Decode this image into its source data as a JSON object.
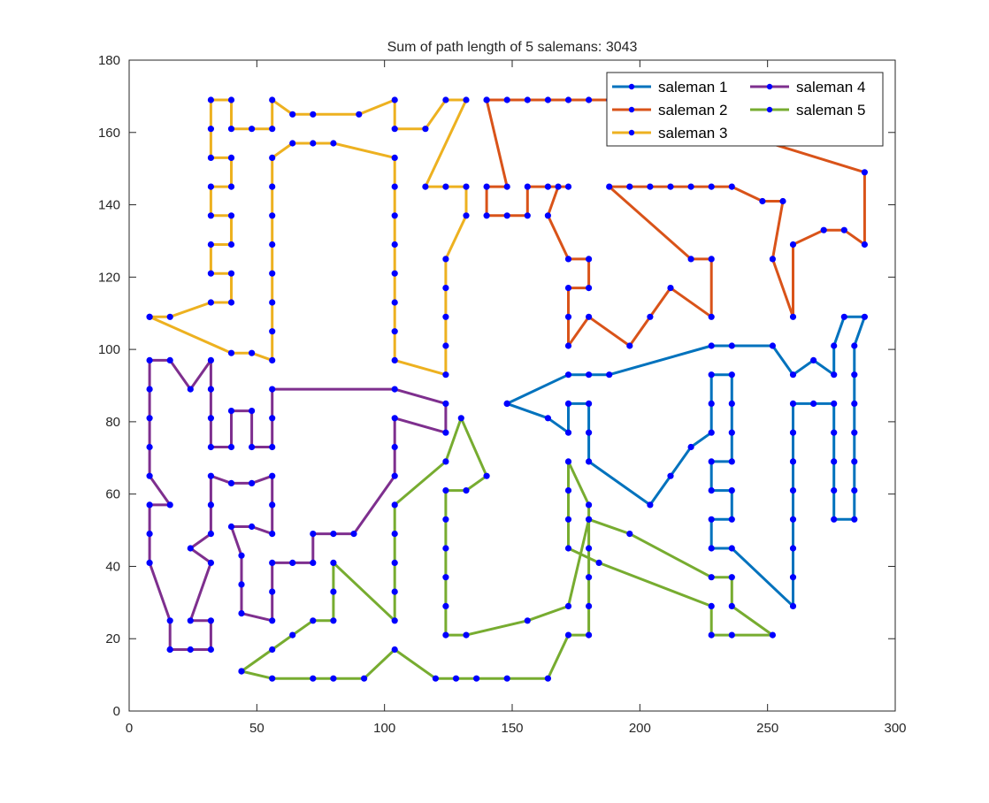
{
  "chart_data": {
    "type": "line",
    "title": "Sum of path length of 5 salemans: 3043",
    "xlabel": "",
    "ylabel": "",
    "xlim": [
      0,
      300
    ],
    "ylim": [
      0,
      180
    ],
    "xticks": [
      0,
      50,
      100,
      150,
      200,
      250,
      300
    ],
    "yticks": [
      0,
      20,
      40,
      60,
      80,
      100,
      120,
      140,
      160,
      180
    ],
    "grid": false,
    "legend_position": "top-right",
    "marker_color": "#0000ff",
    "series": [
      {
        "name": "saleman 1",
        "color": "#0072bd",
        "points": [
          [
            148,
            85
          ],
          [
            172,
            93
          ],
          [
            180,
            93
          ],
          [
            188,
            93
          ],
          [
            228,
            101
          ],
          [
            236,
            101
          ],
          [
            252,
            101
          ],
          [
            260,
            93
          ],
          [
            268,
            97
          ],
          [
            276,
            93
          ],
          [
            276,
            101
          ],
          [
            280,
            109
          ],
          [
            288,
            109
          ],
          [
            284,
            101
          ],
          [
            284,
            93
          ],
          [
            284,
            85
          ],
          [
            284,
            77
          ],
          [
            284,
            69
          ],
          [
            284,
            61
          ],
          [
            284,
            53
          ],
          [
            276,
            53
          ],
          [
            276,
            61
          ],
          [
            276,
            69
          ],
          [
            276,
            77
          ],
          [
            276,
            85
          ],
          [
            268,
            85
          ],
          [
            260,
            85
          ],
          [
            260,
            77
          ],
          [
            260,
            69
          ],
          [
            260,
            61
          ],
          [
            260,
            53
          ],
          [
            260,
            45
          ],
          [
            260,
            37
          ],
          [
            260,
            29
          ],
          [
            236,
            45
          ],
          [
            228,
            45
          ],
          [
            228,
            53
          ],
          [
            236,
            53
          ],
          [
            236,
            61
          ],
          [
            228,
            61
          ],
          [
            228,
            69
          ],
          [
            236,
            69
          ],
          [
            236,
            77
          ],
          [
            236,
            85
          ],
          [
            236,
            93
          ],
          [
            228,
            93
          ],
          [
            228,
            85
          ],
          [
            228,
            77
          ],
          [
            220,
            73
          ],
          [
            212,
            65
          ],
          [
            204,
            57
          ],
          [
            180,
            69
          ],
          [
            180,
            77
          ],
          [
            180,
            85
          ],
          [
            172,
            85
          ],
          [
            172,
            77
          ],
          [
            164,
            81
          ],
          [
            148,
            85
          ]
        ]
      },
      {
        "name": "saleman 2",
        "color": "#d95319",
        "points": [
          [
            140,
            169
          ],
          [
            148,
            169
          ],
          [
            156,
            169
          ],
          [
            164,
            169
          ],
          [
            172,
            169
          ],
          [
            180,
            169
          ],
          [
            188,
            169
          ],
          [
            196,
            169
          ],
          [
            288,
            149
          ],
          [
            288,
            129
          ],
          [
            280,
            133
          ],
          [
            272,
            133
          ],
          [
            260,
            129
          ],
          [
            260,
            109
          ],
          [
            252,
            125
          ],
          [
            256,
            141
          ],
          [
            248,
            141
          ],
          [
            236,
            145
          ],
          [
            228,
            145
          ],
          [
            220,
            145
          ],
          [
            212,
            145
          ],
          [
            204,
            145
          ],
          [
            196,
            145
          ],
          [
            188,
            145
          ],
          [
            220,
            125
          ],
          [
            228,
            125
          ],
          [
            228,
            109
          ],
          [
            212,
            117
          ],
          [
            204,
            109
          ],
          [
            196,
            101
          ],
          [
            180,
            109
          ],
          [
            172,
            101
          ],
          [
            172,
            109
          ],
          [
            172,
            117
          ],
          [
            180,
            117
          ],
          [
            180,
            125
          ],
          [
            172,
            125
          ],
          [
            164,
            137
          ],
          [
            168,
            145
          ],
          [
            172,
            145
          ],
          [
            164,
            145
          ],
          [
            156,
            145
          ],
          [
            156,
            137
          ],
          [
            148,
            137
          ],
          [
            140,
            137
          ],
          [
            140,
            145
          ],
          [
            148,
            145
          ],
          [
            140,
            169
          ]
        ]
      },
      {
        "name": "saleman 3",
        "color": "#edb120",
        "points": [
          [
            8,
            109
          ],
          [
            40,
            99
          ],
          [
            48,
            99
          ],
          [
            56,
            97
          ],
          [
            56,
            105
          ],
          [
            56,
            113
          ],
          [
            56,
            121
          ],
          [
            56,
            129
          ],
          [
            56,
            137
          ],
          [
            56,
            145
          ],
          [
            56,
            153
          ],
          [
            64,
            157
          ],
          [
            72,
            157
          ],
          [
            80,
            157
          ],
          [
            104,
            153
          ],
          [
            104,
            145
          ],
          [
            104,
            137
          ],
          [
            104,
            129
          ],
          [
            104,
            121
          ],
          [
            104,
            113
          ],
          [
            104,
            105
          ],
          [
            104,
            97
          ],
          [
            124,
            93
          ],
          [
            124,
            101
          ],
          [
            124,
            109
          ],
          [
            124,
            117
          ],
          [
            124,
            125
          ],
          [
            132,
            137
          ],
          [
            132,
            145
          ],
          [
            124,
            145
          ],
          [
            116,
            145
          ],
          [
            132,
            169
          ],
          [
            124,
            169
          ],
          [
            116,
            161
          ],
          [
            104,
            161
          ],
          [
            104,
            169
          ],
          [
            90,
            165
          ],
          [
            72,
            165
          ],
          [
            64,
            165
          ],
          [
            56,
            169
          ],
          [
            56,
            161
          ],
          [
            48,
            161
          ],
          [
            40,
            161
          ],
          [
            40,
            169
          ],
          [
            32,
            169
          ],
          [
            32,
            161
          ],
          [
            32,
            153
          ],
          [
            40,
            153
          ],
          [
            40,
            145
          ],
          [
            32,
            145
          ],
          [
            32,
            137
          ],
          [
            40,
            137
          ],
          [
            40,
            129
          ],
          [
            32,
            129
          ],
          [
            32,
            121
          ],
          [
            40,
            121
          ],
          [
            40,
            113
          ],
          [
            32,
            113
          ],
          [
            16,
            109
          ],
          [
            8,
            109
          ]
        ]
      },
      {
        "name": "saleman 4",
        "color": "#7e2f8e",
        "points": [
          [
            16,
            17
          ],
          [
            24,
            17
          ],
          [
            32,
            17
          ],
          [
            32,
            25
          ],
          [
            24,
            25
          ],
          [
            32,
            41
          ],
          [
            24,
            45
          ],
          [
            32,
            49
          ],
          [
            32,
            57
          ],
          [
            32,
            65
          ],
          [
            40,
            63
          ],
          [
            48,
            63
          ],
          [
            56,
            65
          ],
          [
            56,
            57
          ],
          [
            56,
            49
          ],
          [
            48,
            51
          ],
          [
            40,
            51
          ],
          [
            44,
            43
          ],
          [
            44,
            35
          ],
          [
            44,
            27
          ],
          [
            56,
            25
          ],
          [
            56,
            33
          ],
          [
            56,
            41
          ],
          [
            64,
            41
          ],
          [
            72,
            41
          ],
          [
            72,
            49
          ],
          [
            80,
            49
          ],
          [
            88,
            49
          ],
          [
            104,
            65
          ],
          [
            104,
            73
          ],
          [
            104,
            81
          ],
          [
            124,
            77
          ],
          [
            124,
            85
          ],
          [
            104,
            89
          ],
          [
            56,
            89
          ],
          [
            56,
            81
          ],
          [
            56,
            73
          ],
          [
            48,
            73
          ],
          [
            48,
            83
          ],
          [
            40,
            83
          ],
          [
            40,
            73
          ],
          [
            32,
            73
          ],
          [
            32,
            81
          ],
          [
            32,
            89
          ],
          [
            32,
            97
          ],
          [
            24,
            89
          ],
          [
            16,
            97
          ],
          [
            8,
            97
          ],
          [
            8,
            89
          ],
          [
            8,
            81
          ],
          [
            8,
            73
          ],
          [
            8,
            65
          ],
          [
            16,
            57
          ],
          [
            8,
            57
          ],
          [
            8,
            49
          ],
          [
            8,
            41
          ],
          [
            16,
            25
          ],
          [
            16,
            17
          ]
        ]
      },
      {
        "name": "saleman 5",
        "color": "#77ac30",
        "points": [
          [
            44,
            11
          ],
          [
            56,
            9
          ],
          [
            72,
            9
          ],
          [
            80,
            9
          ],
          [
            92,
            9
          ],
          [
            104,
            17
          ],
          [
            120,
            9
          ],
          [
            128,
            9
          ],
          [
            136,
            9
          ],
          [
            148,
            9
          ],
          [
            164,
            9
          ],
          [
            172,
            21
          ],
          [
            180,
            21
          ],
          [
            180,
            29
          ],
          [
            180,
            37
          ],
          [
            180,
            45
          ],
          [
            180,
            53
          ],
          [
            196,
            49
          ],
          [
            228,
            37
          ],
          [
            236,
            37
          ],
          [
            236,
            29
          ],
          [
            252,
            21
          ],
          [
            236,
            21
          ],
          [
            228,
            21
          ],
          [
            228,
            29
          ],
          [
            184,
            41
          ],
          [
            172,
            45
          ],
          [
            172,
            53
          ],
          [
            172,
            61
          ],
          [
            172,
            69
          ],
          [
            180,
            57
          ],
          [
            180,
            53
          ],
          [
            172,
            29
          ],
          [
            156,
            25
          ],
          [
            132,
            21
          ],
          [
            124,
            21
          ],
          [
            124,
            29
          ],
          [
            124,
            37
          ],
          [
            124,
            45
          ],
          [
            124,
            53
          ],
          [
            124,
            61
          ],
          [
            132,
            61
          ],
          [
            140,
            65
          ],
          [
            130,
            81
          ],
          [
            124,
            69
          ],
          [
            104,
            57
          ],
          [
            104,
            49
          ],
          [
            104,
            41
          ],
          [
            104,
            33
          ],
          [
            104,
            25
          ],
          [
            80,
            41
          ],
          [
            80,
            33
          ],
          [
            80,
            25
          ],
          [
            72,
            25
          ],
          [
            64,
            21
          ],
          [
            56,
            17
          ],
          [
            44,
            11
          ]
        ]
      }
    ]
  }
}
